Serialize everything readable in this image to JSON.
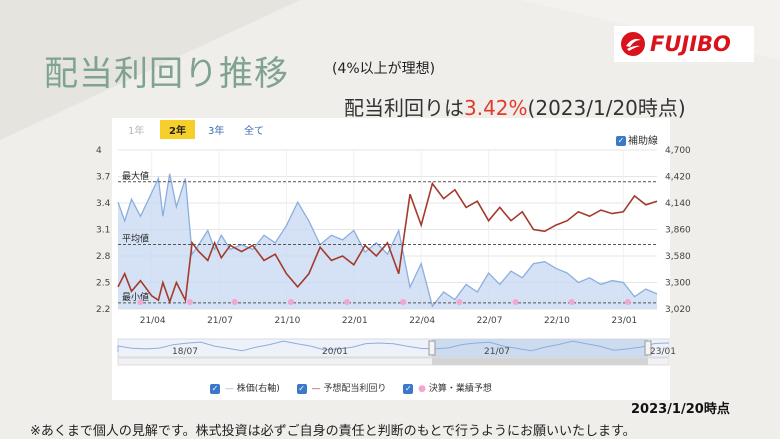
{
  "header": {
    "title": "配当利回り推移",
    "subtitle": "(4%以上が理想)",
    "logo_text": "FUJIBO",
    "headline_prefix": "配当利回りは",
    "headline_value": "3.42%",
    "headline_suffix": "(2023/1/20時点)"
  },
  "range_buttons": [
    {
      "label": "1年",
      "state": "disabled"
    },
    {
      "label": "2年",
      "state": "selected"
    },
    {
      "label": "3年",
      "state": "normal"
    },
    {
      "label": "全て",
      "state": "normal"
    }
  ],
  "aux_checkbox": {
    "label": "補助線",
    "checked": true
  },
  "legend": {
    "price": "株価(右軸)",
    "yield": "予想配当利回り",
    "events": "決算・業績予想"
  },
  "navigator_labels": [
    "18/07",
    "20/01",
    "21/07",
    "23/01"
  ],
  "date_note": "2023/1/20時点",
  "footer": "※あくまで個人の見解です。株式投資は必ずご自身の責任と判断のもとで行うようにお願いいたします。",
  "colors": {
    "price": "#8aaee0",
    "price_fill": "#c7d8f1",
    "yield": "#a33b2c",
    "event": "#f3a6d0",
    "accent": "#e23a2a"
  },
  "chart_data": {
    "type": "line",
    "x_ticks": [
      "21/04",
      "21/07",
      "21/10",
      "22/01",
      "22/04",
      "22/07",
      "22/10",
      "23/01"
    ],
    "x_range": [
      0,
      24
    ],
    "y_left": {
      "range": [
        2.2,
        4.0
      ],
      "ticks": [
        2.2,
        2.5,
        2.8,
        3.1,
        3.4,
        3.7,
        4
      ]
    },
    "y_right": {
      "range": [
        3020,
        4700
      ],
      "ticks": [
        "3,020",
        "3,300",
        "3,580",
        "3,860",
        "4,140",
        "4,420",
        "4,700"
      ]
    },
    "reference_lines": [
      {
        "label": "最大値",
        "value": 3.64
      },
      {
        "label": "平均値",
        "value": 2.93
      },
      {
        "label": "最小値",
        "value": 2.27
      }
    ],
    "series": [
      {
        "name": "予想配当利回り",
        "axis": "left",
        "x": [
          0,
          0.3,
          0.6,
          1,
          1.5,
          1.8,
          2,
          2.3,
          2.6,
          3,
          3.3,
          3.6,
          4,
          4.3,
          4.6,
          5,
          5.5,
          6,
          6.5,
          7,
          7.5,
          8,
          8.5,
          9,
          9.5,
          10,
          10.5,
          11,
          11.5,
          12,
          12.5,
          13,
          13.5,
          14,
          14.5,
          15,
          15.5,
          16,
          16.5,
          17,
          17.5,
          18,
          18.5,
          19,
          19.5,
          20,
          20.5,
          21,
          21.5,
          22,
          22.5,
          23,
          23.5,
          24
        ],
        "values": [
          2.45,
          2.6,
          2.4,
          2.52,
          2.35,
          2.3,
          2.5,
          2.28,
          2.5,
          2.3,
          2.95,
          2.85,
          2.75,
          2.95,
          2.78,
          2.92,
          2.85,
          2.92,
          2.75,
          2.82,
          2.6,
          2.45,
          2.6,
          2.9,
          2.75,
          2.8,
          2.7,
          2.92,
          2.8,
          2.95,
          2.6,
          3.5,
          3.15,
          3.62,
          3.45,
          3.55,
          3.35,
          3.42,
          3.2,
          3.35,
          3.2,
          3.3,
          3.1,
          3.08,
          3.15,
          3.2,
          3.3,
          3.25,
          3.32,
          3.28,
          3.3,
          3.48,
          3.38,
          3.42
        ]
      },
      {
        "name": "株価(右軸)",
        "axis": "right",
        "x": [
          0,
          0.3,
          0.6,
          1,
          1.5,
          1.8,
          2,
          2.3,
          2.6,
          3,
          3.3,
          3.6,
          4,
          4.3,
          4.6,
          5,
          5.5,
          6,
          6.5,
          7,
          7.5,
          8,
          8.5,
          9,
          9.5,
          10,
          10.5,
          11,
          11.5,
          12,
          12.5,
          13,
          13.5,
          14,
          14.5,
          15,
          15.5,
          16,
          16.5,
          17,
          17.5,
          18,
          18.5,
          19,
          19.5,
          20,
          20.5,
          21,
          21.5,
          22,
          22.5,
          23,
          23.5,
          24
        ],
        "values": [
          4150,
          3950,
          4180,
          4000,
          4250,
          4400,
          4000,
          4450,
          4100,
          4400,
          3600,
          3700,
          3850,
          3650,
          3800,
          3650,
          3700,
          3650,
          3800,
          3720,
          3900,
          4150,
          3950,
          3700,
          3800,
          3750,
          3850,
          3620,
          3720,
          3600,
          3850,
          3250,
          3500,
          3050,
          3200,
          3120,
          3280,
          3200,
          3400,
          3280,
          3420,
          3350,
          3500,
          3520,
          3450,
          3400,
          3300,
          3350,
          3280,
          3320,
          3300,
          3150,
          3230,
          3180
        ]
      }
    ],
    "event_markers_x": [
      1,
      3.2,
      5.2,
      7.7,
      10.2,
      12.7,
      15.2,
      17.7,
      20.2,
      22.7
    ],
    "grid": true,
    "legend_position": "bottom"
  }
}
